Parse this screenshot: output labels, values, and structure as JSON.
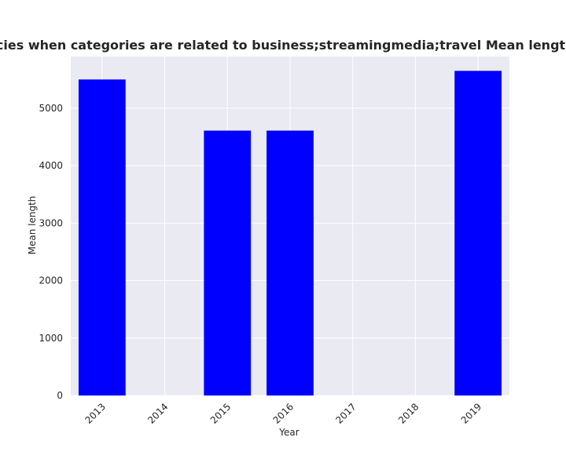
{
  "chart_data": {
    "type": "bar",
    "title": "Mean length of privacy policies when categories are related to business;streamingmedia;travel Mean length in privacy policies by year",
    "xlabel": "Year",
    "ylabel": "Mean length",
    "categories": [
      "2013",
      "2014",
      "2015",
      "2016",
      "2017",
      "2018",
      "2019"
    ],
    "values": [
      5500,
      0,
      4610,
      4610,
      0,
      0,
      5650
    ],
    "ylim": [
      0,
      5900
    ],
    "yticks": [
      0,
      1000,
      2000,
      3000,
      4000,
      5000
    ],
    "bar_color": "#0000ff",
    "background_color": "#eaeaf2",
    "grid": true
  }
}
